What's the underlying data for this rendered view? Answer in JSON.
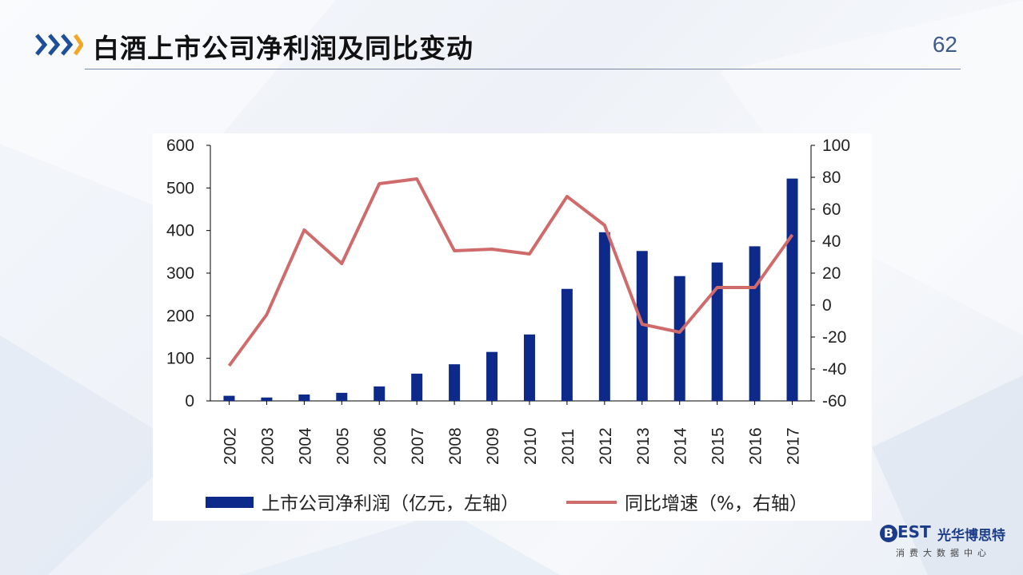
{
  "slide": {
    "title": "白酒上市公司净利润及同比变动",
    "page_number": "62"
  },
  "logo": {
    "mark": "EST",
    "mark_b": "B",
    "name": "光华博思特",
    "subtitle": "消费大数据中心"
  },
  "colors": {
    "bar": "#0d2a8a",
    "line": "#cf6b6b",
    "title_accent_dark": "#1d4f9a",
    "title_accent_orange": "#f5a623"
  },
  "chart_data": {
    "type": "bar+line",
    "categories": [
      "2002",
      "2003",
      "2004",
      "2005",
      "2006",
      "2007",
      "2008",
      "2009",
      "2010",
      "2011",
      "2012",
      "2013",
      "2014",
      "2015",
      "2016",
      "2017"
    ],
    "series": [
      {
        "name": "上市公司净利润（亿元，左轴）",
        "type": "bar",
        "axis": "left",
        "values": [
          12,
          8,
          15,
          19,
          34,
          64,
          86,
          115,
          156,
          263,
          396,
          352,
          293,
          325,
          363,
          522
        ]
      },
      {
        "name": "同比增速（%，右轴）",
        "type": "line",
        "axis": "right",
        "values": [
          -38,
          -6,
          47,
          26,
          76,
          79,
          34,
          35,
          32,
          68,
          50,
          -12,
          -17,
          11,
          11,
          44
        ]
      }
    ],
    "y_left": {
      "min": 0,
      "max": 600,
      "ticks": [
        "0",
        "100",
        "200",
        "300",
        "400",
        "500",
        "600"
      ]
    },
    "y_right": {
      "min": -60,
      "max": 100,
      "ticks": [
        "-60",
        "-40",
        "-20",
        "0",
        "20",
        "40",
        "60",
        "80",
        "100"
      ]
    },
    "legend_position": "bottom",
    "grid": false
  }
}
